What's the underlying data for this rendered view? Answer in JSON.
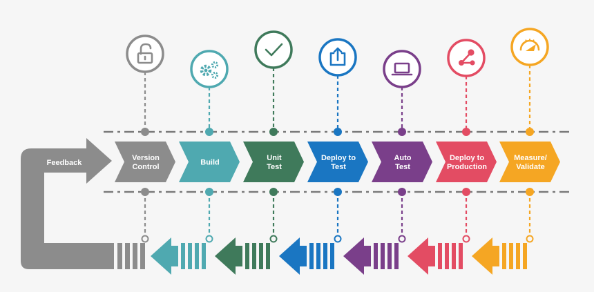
{
  "feedback": {
    "label": "Feedback",
    "color": "#8c8c8c"
  },
  "stages": [
    {
      "lines": [
        "Version",
        "Control"
      ],
      "color": "#8c8c8c",
      "icon": "padlock-icon"
    },
    {
      "lines": [
        "Build"
      ],
      "color": "#4fa9b0",
      "icon": "gears-icon"
    },
    {
      "lines": [
        "Unit",
        "Test"
      ],
      "color": "#3f7a5b",
      "icon": "checkmark-icon"
    },
    {
      "lines": [
        "Deploy to",
        "Test"
      ],
      "color": "#1a76c2",
      "icon": "share-upload-icon"
    },
    {
      "lines": [
        "Auto",
        "Test"
      ],
      "color": "#7a3f8a",
      "icon": "laptop-icon"
    },
    {
      "lines": [
        "Deploy to",
        "Production"
      ],
      "color": "#e34c63",
      "icon": "share-nodes-icon"
    },
    {
      "lines": [
        "Measure/",
        "Validate"
      ],
      "color": "#f5a623",
      "icon": "speedometer-icon"
    }
  ],
  "dash_line_color": "#7a7a7a"
}
